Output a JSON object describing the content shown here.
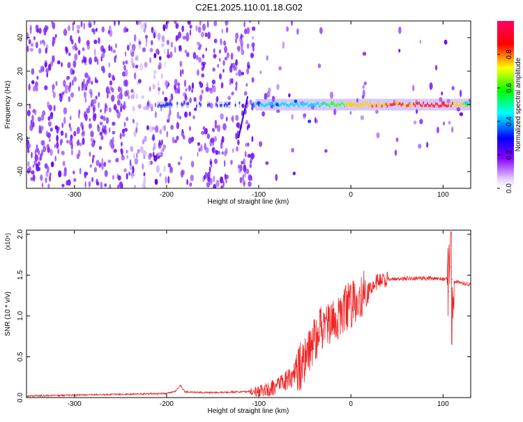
{
  "title": "C2E1.2025.110.01.18.G02",
  "chart_data": [
    {
      "type": "heatmap",
      "xlabel": "Height of straight line (km)",
      "ylabel": "Frequency (Hz)",
      "xlim": [
        -352,
        130
      ],
      "ylim": [
        -50,
        50
      ],
      "x_ticks": [
        -300,
        -200,
        -100,
        0,
        100
      ],
      "y_ticks": [
        -40,
        -20,
        0,
        20,
        40
      ],
      "x_tick_labels": [
        "-300",
        "-200",
        "-100",
        "0",
        "100"
      ],
      "y_tick_labels": [
        "-40",
        "-20",
        "0",
        "20",
        "40"
      ],
      "grid": false,
      "description_signal": [
        {
          "x": -200,
          "freq": 0,
          "amp": 0.3
        },
        {
          "x": -100,
          "freq": 1,
          "amp": 0.35
        },
        {
          "x": -80,
          "freq": 0,
          "amp": 0.45
        },
        {
          "x": -60,
          "freq": 2,
          "amp": 0.5
        },
        {
          "x": -45,
          "freq": -10,
          "amp": 0.35
        },
        {
          "x": -20,
          "freq": 1,
          "amp": 0.7
        },
        {
          "x": 0,
          "freq": 0,
          "amp": 0.85
        },
        {
          "x": 50,
          "freq": 1,
          "amp": 0.85
        },
        {
          "x": 100,
          "freq": 1,
          "amp": 0.95
        },
        {
          "x": 125,
          "freq": 1,
          "amp": 0.6
        }
      ],
      "colorbar": {
        "label": "Normalized spectral amplitude",
        "range": [
          0,
          1
        ],
        "ticks": [
          "0.0",
          "0.2",
          "0.4",
          "0.6",
          "0.8"
        ],
        "colors": [
          "#ffffff",
          "#8800ff",
          "#0000ff",
          "#00ffff",
          "#00ff00",
          "#ffff00",
          "#ff0000",
          "#ff0066"
        ]
      }
    },
    {
      "type": "line",
      "xlabel": "Height of straight line (km)",
      "ylabel": "SNR (10 * v/v)",
      "scale_note": "(x10⁴)",
      "xlim": [
        -352,
        130
      ],
      "ylim": [
        0,
        2.05
      ],
      "x_ticks": [
        -300,
        -200,
        -100,
        0,
        100
      ],
      "y_ticks": [
        0.0,
        0.5,
        1.0,
        1.5,
        2.0
      ],
      "x_tick_labels": [
        "-300",
        "-200",
        "-100",
        "0",
        "100"
      ],
      "y_tick_labels": [
        "0.0",
        "0.5",
        "1.0",
        "1.5",
        "2.0"
      ],
      "grid": false,
      "series": [
        {
          "color": "#ee2222",
          "x": [
            -352,
            -300,
            -250,
            -200,
            -190,
            -185,
            -180,
            -150,
            -120,
            -100,
            -90,
            -80,
            -70,
            -60,
            -50,
            -45,
            -40,
            -35,
            -30,
            -25,
            -20,
            -15,
            -10,
            -5,
            0,
            10,
            20,
            30,
            40,
            50,
            60,
            70,
            80,
            90,
            100,
            104,
            106,
            108,
            110,
            112,
            115,
            120,
            130
          ],
          "y": [
            0.02,
            0.03,
            0.04,
            0.05,
            0.08,
            0.15,
            0.07,
            0.06,
            0.07,
            0.08,
            0.1,
            0.14,
            0.2,
            0.3,
            0.45,
            0.6,
            0.7,
            0.8,
            0.85,
            0.9,
            0.95,
            1.0,
            1.02,
            1.1,
            1.15,
            1.25,
            1.35,
            1.42,
            1.45,
            1.45,
            1.46,
            1.46,
            1.46,
            1.46,
            1.45,
            1.45,
            1.3,
            1.6,
            1.45,
            1.42,
            1.42,
            1.41,
            1.38
          ]
        }
      ]
    }
  ]
}
